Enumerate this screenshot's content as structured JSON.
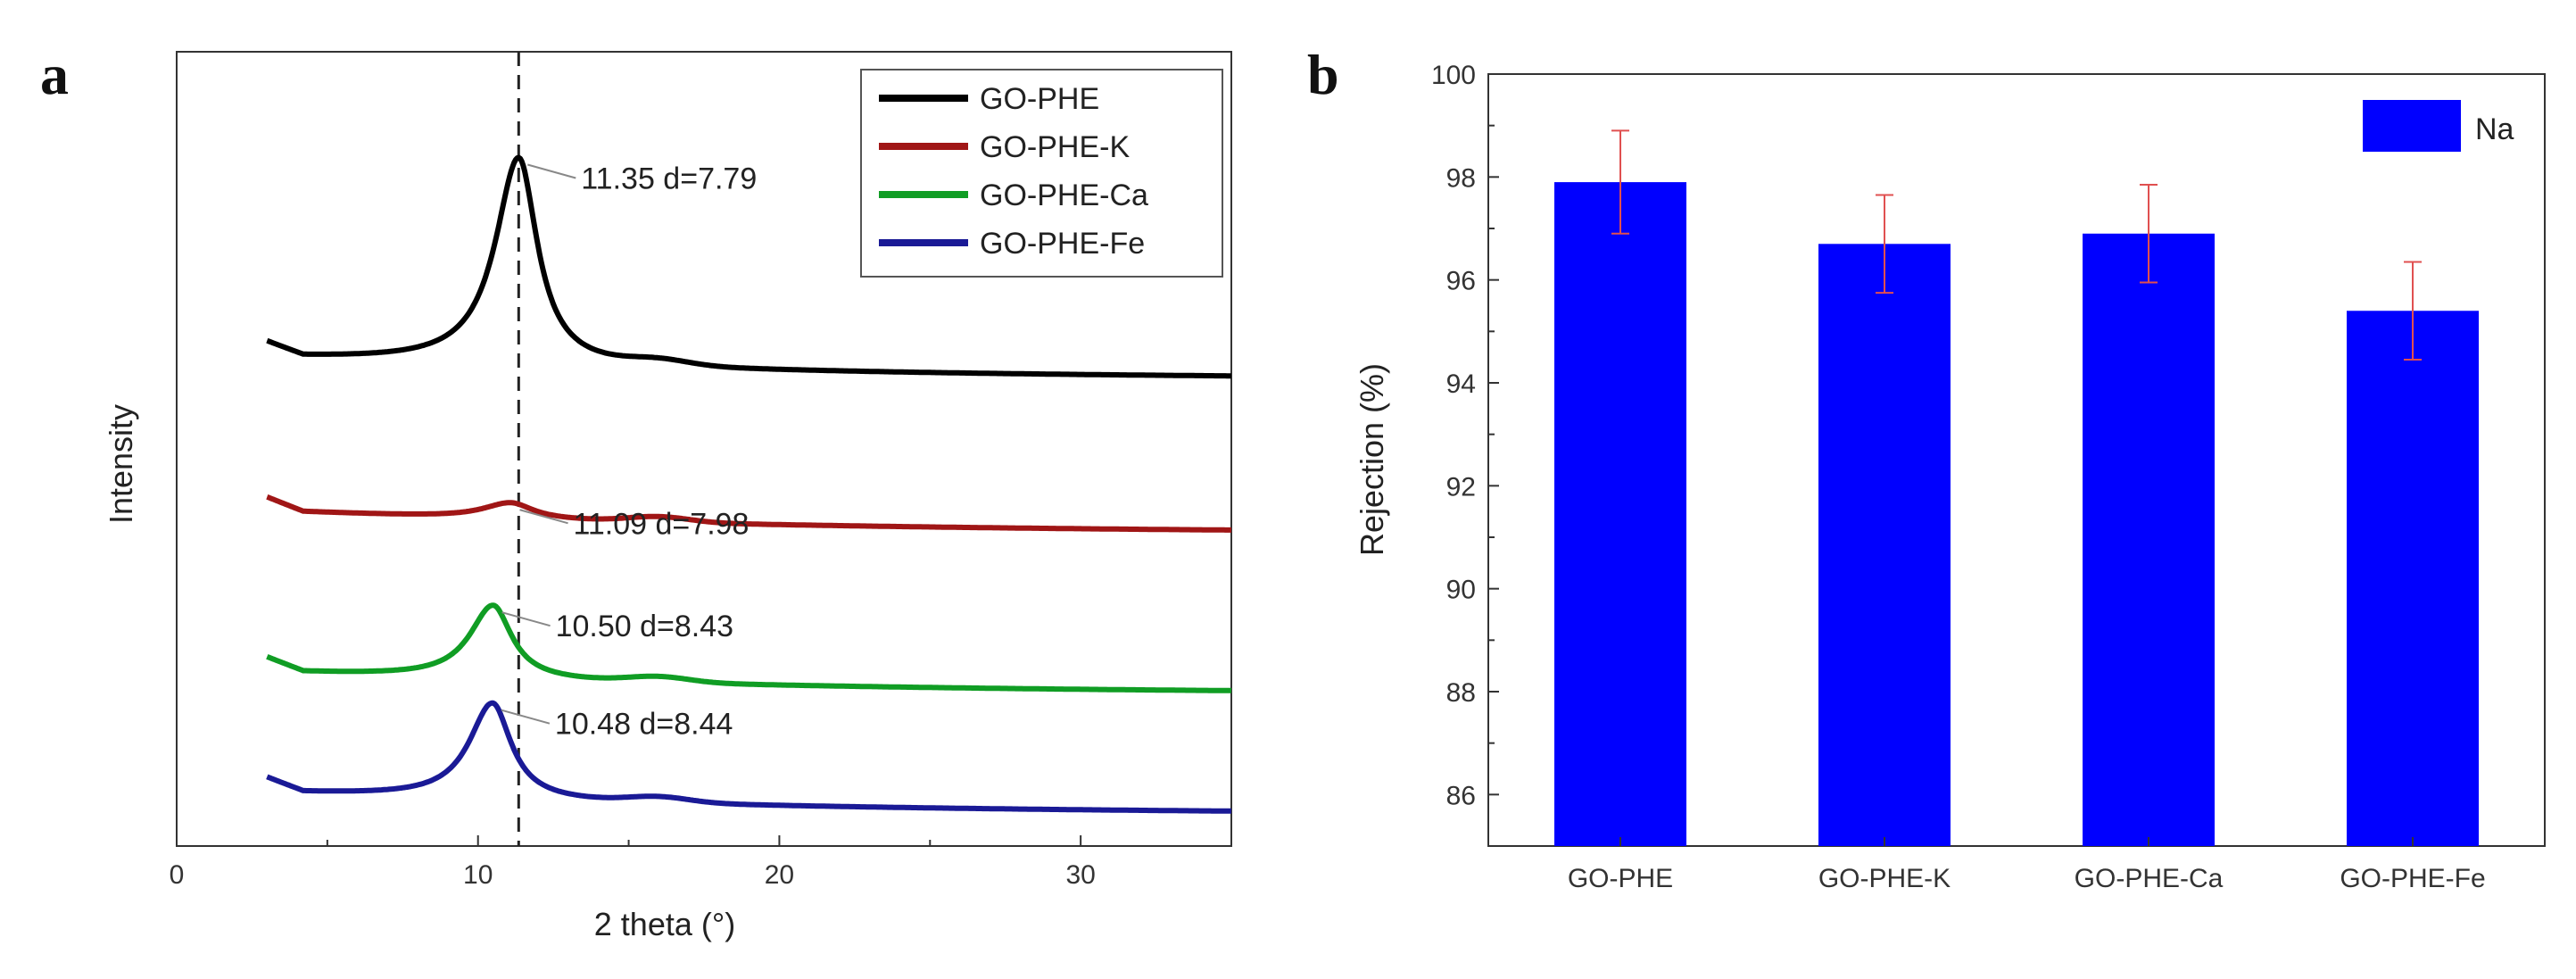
{
  "panels": {
    "a": {
      "letter": "a"
    },
    "b": {
      "letter": "b"
    }
  },
  "chart_data": [
    {
      "type": "line",
      "title": "",
      "xlabel": "2 theta (°)",
      "ylabel": "Intensity",
      "xlim": [
        0,
        35
      ],
      "xticks": [
        0,
        10,
        20,
        30
      ],
      "grid": false,
      "legend_position": "top-right",
      "reference_line_x": 11.35,
      "series": [
        {
          "name": "GO-PHE",
          "color": "#000000",
          "offset": 3.6,
          "peak_x": 11.35,
          "peak_height": 1.55,
          "peak_width": 0.75
        },
        {
          "name": "GO-PHE-K",
          "color": "#a01616",
          "offset": 2.45,
          "peak_x": 11.09,
          "peak_height": 0.12,
          "peak_width": 0.9
        },
        {
          "name": "GO-PHE-Ca",
          "color": "#109d24",
          "offset": 1.25,
          "peak_x": 10.5,
          "peak_height": 0.55,
          "peak_width": 0.75
        },
        {
          "name": "GO-PHE-Fe",
          "color": "#1a1a96",
          "offset": 0.35,
          "peak_x": 10.48,
          "peak_height": 0.72,
          "peak_width": 0.75
        }
      ],
      "annotations": [
        {
          "series": "GO-PHE",
          "text": "11.35  d=7.79"
        },
        {
          "series": "GO-PHE-K",
          "text": "11.09  d=7.98"
        },
        {
          "series": "GO-PHE-Ca",
          "text": "10.50 d=8.43"
        },
        {
          "series": "GO-PHE-Fe",
          "text": "10.48 d=8.44"
        }
      ]
    },
    {
      "type": "bar",
      "title": "",
      "xlabel": "",
      "ylabel": "Rejection (%)",
      "ylim": [
        85,
        100
      ],
      "yticks": [
        86,
        88,
        90,
        92,
        94,
        96,
        98,
        100
      ],
      "categories": [
        "GO-PHE",
        "GO-PHE-K",
        "GO-PHE-Ca",
        "GO-PHE-Fe"
      ],
      "series": [
        {
          "name": "Na",
          "color": "#0000ff",
          "values": [
            97.9,
            96.7,
            96.9,
            95.4
          ],
          "errors": [
            1.0,
            0.95,
            0.95,
            0.95
          ]
        }
      ],
      "error_color": "#e05050",
      "grid": false,
      "legend_position": "top-right"
    }
  ]
}
